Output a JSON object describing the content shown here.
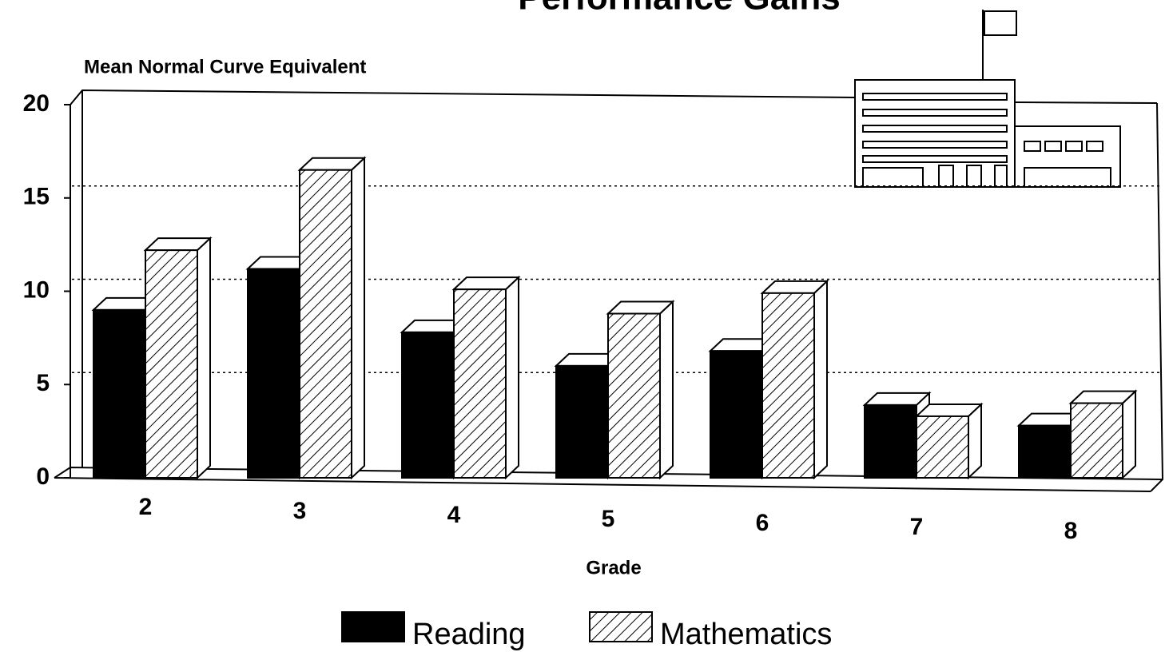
{
  "chart_data": {
    "type": "bar3d",
    "title": "Performance Gains",
    "y_label": "Mean Normal Curve Equivalent",
    "x_label": "Grade",
    "categories": [
      "2",
      "3",
      "4",
      "5",
      "6",
      "7",
      "8"
    ],
    "series": [
      {
        "name": "Reading",
        "color": "#000000",
        "values": [
          9.0,
          11.2,
          7.8,
          6.0,
          6.8,
          3.9,
          2.8
        ]
      },
      {
        "name": "Mathematics",
        "color": "#ffffff",
        "hatch": true,
        "values": [
          12.2,
          16.5,
          10.1,
          8.8,
          9.9,
          3.3,
          4.0
        ]
      }
    ],
    "ylim": [
      0,
      20
    ],
    "yticks": [
      0,
      5,
      10,
      15,
      20
    ],
    "grid": true,
    "legend": "bottom"
  }
}
